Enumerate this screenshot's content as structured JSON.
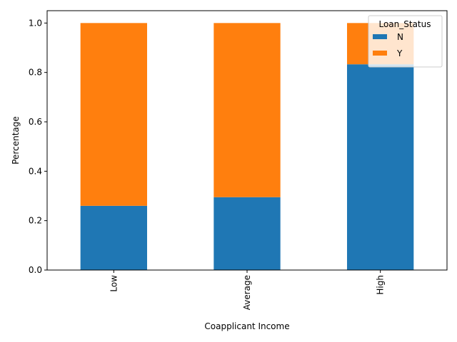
{
  "chart_data": {
    "type": "bar",
    "stacked": true,
    "xlabel": "Coapplicant Income",
    "ylabel": "Percentage",
    "categories": [
      "Low",
      "Average",
      "High"
    ],
    "ylim": [
      0,
      1.05
    ],
    "yticks": [
      "0.0",
      "0.2",
      "0.4",
      "0.6",
      "0.8",
      "1.0"
    ],
    "series": [
      {
        "name": "N",
        "color": "#1f77b4",
        "values": [
          0.26,
          0.295,
          0.833
        ]
      },
      {
        "name": "Y",
        "color": "#ff7f0e",
        "values": [
          0.74,
          0.705,
          0.167
        ]
      }
    ],
    "legend": {
      "title": "Loan_Status",
      "position": "top-right"
    },
    "grid": false
  }
}
